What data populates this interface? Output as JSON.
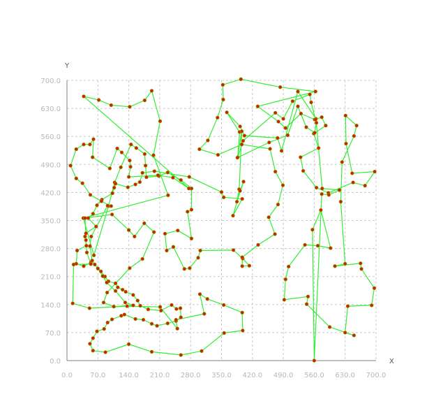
{
  "chart_data": {
    "type": "line",
    "title": "",
    "xlabel": "X",
    "ylabel": "Y",
    "xlim": [
      0,
      700
    ],
    "ylim": [
      0,
      700
    ],
    "grid": true,
    "x_ticks": [
      "0.0",
      "70.0",
      "140.0",
      "210.0",
      "280.0",
      "350.0",
      "420.0",
      "490.0",
      "560.0",
      "630.0",
      "700.0"
    ],
    "y_ticks": [
      "0.0",
      "70.0",
      "140.0",
      "210.0",
      "280.0",
      "350.0",
      "420.0",
      "490.0",
      "560.0",
      "630.0",
      "700.0"
    ],
    "colors": {
      "line": "#33ee33",
      "marker": "#cc2200",
      "marker_edge": "#88aa00",
      "grid": "#c8c8c8",
      "axis": "#808080"
    },
    "series": [
      {
        "closed": true,
        "points": [
          [
            38,
            660
          ],
          [
            72,
            651
          ],
          [
            100,
            638
          ],
          [
            142,
            634
          ],
          [
            176,
            650
          ],
          [
            192,
            674
          ],
          [
            211,
            598
          ],
          [
            196,
            513
          ],
          [
            229,
            413
          ],
          [
            37,
            356
          ],
          [
            61,
            263
          ],
          [
            94,
            386
          ],
          [
            108,
            445
          ],
          [
            122,
            483
          ],
          [
            145,
            540
          ],
          [
            157,
            531
          ],
          [
            176,
            516
          ],
          [
            178,
            487
          ],
          [
            180,
            458
          ],
          [
            208,
            461
          ],
          [
            228,
            470
          ],
          [
            258,
            451
          ],
          [
            282,
            430
          ],
          [
            282,
            377
          ],
          [
            273,
            372
          ],
          [
            282,
            305
          ],
          [
            251,
            325
          ],
          [
            222,
            317
          ],
          [
            226,
            275
          ],
          [
            241,
            284
          ],
          [
            266,
            229
          ],
          [
            278,
            231
          ],
          [
            297,
            257
          ],
          [
            302,
            275
          ],
          [
            377,
            276
          ],
          [
            398,
            255
          ],
          [
            413,
            237
          ],
          [
            397,
            236
          ],
          [
            397,
            258
          ],
          [
            433,
            289
          ],
          [
            471,
            316
          ],
          [
            457,
            358
          ],
          [
            478,
            390
          ],
          [
            489,
            438
          ],
          [
            472,
            472
          ],
          [
            460,
            529
          ],
          [
            396,
            540
          ],
          [
            342,
            514
          ],
          [
            300,
            528
          ],
          [
            319,
            550
          ],
          [
            341,
            607
          ],
          [
            354,
            652
          ],
          [
            353,
            689
          ],
          [
            394,
            703
          ],
          [
            483,
            683
          ],
          [
            563,
            672
          ],
          [
            432,
            635
          ],
          [
            479,
            597
          ],
          [
            495,
            581
          ],
          [
            530,
            617
          ],
          [
            561,
            602
          ],
          [
            577,
            608
          ],
          [
            586,
            587
          ],
          [
            559,
            567
          ],
          [
            570,
            531
          ],
          [
            529,
            508
          ],
          [
            535,
            474
          ],
          [
            565,
            432
          ],
          [
            592,
            419
          ],
          [
            648,
            445
          ],
          [
            675,
            437
          ],
          [
            697,
            472
          ],
          [
            646,
            468
          ],
          [
            632,
            542
          ],
          [
            631,
            612
          ],
          [
            656,
            587
          ],
          [
            650,
            561
          ],
          [
            623,
            496
          ],
          [
            620,
            397
          ],
          [
            630,
            242
          ],
          [
            607,
            236
          ],
          [
            665,
            243
          ],
          [
            667,
            229
          ],
          [
            696,
            181
          ],
          [
            690,
            138
          ],
          [
            636,
            136
          ],
          [
            630,
            70
          ],
          [
            650,
            63
          ],
          [
            595,
            84
          ],
          [
            543,
            141
          ],
          [
            546,
            160
          ],
          [
            492,
            152
          ],
          [
            495,
            203
          ],
          [
            502,
            235
          ],
          [
            539,
            289
          ],
          [
            568,
            287
          ],
          [
            597,
            281
          ],
          [
            575,
            376
          ],
          [
            556,
            327
          ],
          [
            560,
            0
          ],
          [
            577,
            416
          ],
          [
            593,
            414
          ],
          [
            617,
            426
          ],
          [
            578,
            430
          ],
          [
            564,
            604
          ],
          [
            523,
            672
          ],
          [
            486,
            524
          ],
          [
            477,
            556
          ],
          [
            402,
            562
          ],
          [
            392,
            585
          ],
          [
            362,
            620
          ],
          [
            391,
            571
          ],
          [
            387,
            508
          ],
          [
            399,
            549
          ],
          [
            472,
            619
          ],
          [
            490,
            604
          ],
          [
            511,
            648
          ],
          [
            550,
            665
          ],
          [
            553,
            645
          ],
          [
            563,
            602
          ],
          [
            565,
            594
          ],
          [
            561,
            569
          ],
          [
            542,
            583
          ],
          [
            523,
            635
          ],
          [
            500,
            563
          ],
          [
            458,
            545
          ],
          [
            386,
            507
          ],
          [
            396,
            573
          ],
          [
            390,
            428
          ],
          [
            385,
            397
          ],
          [
            400,
            447
          ],
          [
            392,
            424
          ],
          [
            376,
            362
          ],
          [
            397,
            404
          ],
          [
            355,
            408
          ],
          [
            350,
            421
          ],
          [
            277,
            459
          ],
          [
            198,
            473
          ],
          [
            171,
            469
          ],
          [
            165,
            446
          ],
          [
            155,
            440
          ],
          [
            138,
            433
          ],
          [
            110,
            442
          ],
          [
            107,
            432
          ],
          [
            103,
            418
          ],
          [
            79,
            402
          ],
          [
            68,
            388
          ],
          [
            59,
            367
          ],
          [
            48,
            356
          ],
          [
            66,
            335
          ],
          [
            43,
            318
          ],
          [
            41,
            310
          ],
          [
            44,
            287
          ],
          [
            23,
            275
          ],
          [
            21,
            242
          ],
          [
            38,
            236
          ],
          [
            54,
            245
          ],
          [
            63,
            240
          ],
          [
            77,
            223
          ],
          [
            86,
            210
          ],
          [
            94,
            198
          ],
          [
            110,
            193
          ],
          [
            115,
            183
          ],
          [
            126,
            177
          ],
          [
            133,
            172
          ],
          [
            150,
            164
          ],
          [
            160,
            150
          ],
          [
            166,
            137
          ],
          [
            184,
            128
          ],
          [
            213,
            125
          ],
          [
            237,
            139
          ],
          [
            248,
            129
          ],
          [
            257,
            131
          ],
          [
            258,
            108
          ],
          [
            247,
            99
          ],
          [
            228,
            93
          ],
          [
            204,
            87
          ],
          [
            192,
            92
          ],
          [
            173,
            102
          ],
          [
            155,
            104
          ],
          [
            130,
            115
          ],
          [
            123,
            112
          ],
          [
            102,
            103
          ],
          [
            92,
            95
          ],
          [
            84,
            79
          ],
          [
            68,
            73
          ],
          [
            59,
            56
          ],
          [
            52,
            42
          ],
          [
            59,
            25
          ],
          [
            87,
            21
          ],
          [
            140,
            41
          ],
          [
            192,
            22
          ],
          [
            258,
            14
          ],
          [
            305,
            24
          ],
          [
            356,
            69
          ],
          [
            398,
            75
          ],
          [
            397,
            120
          ],
          [
            355,
            139
          ],
          [
            318,
            154
          ],
          [
            301,
            166
          ],
          [
            311,
            117
          ],
          [
            247,
            102
          ],
          [
            250,
            80
          ],
          [
            211,
            134
          ],
          [
            136,
            136
          ],
          [
            51,
            131
          ],
          [
            13,
            143
          ],
          [
            15,
            240
          ],
          [
            54,
            241
          ],
          [
            45,
            270
          ],
          [
            43,
            301
          ],
          [
            41,
            356
          ],
          [
            102,
            365
          ],
          [
            140,
            326
          ],
          [
            153,
            310
          ],
          [
            175,
            343
          ],
          [
            197,
            321
          ],
          [
            171,
            254
          ],
          [
            142,
            231
          ],
          [
            91,
            170
          ],
          [
            83,
            145
          ],
          [
            106,
            135
          ],
          [
            150,
            138
          ],
          [
            132,
            145
          ],
          [
            110,
            174
          ],
          [
            90,
            195
          ],
          [
            81,
            211
          ],
          [
            70,
            230
          ],
          [
            57,
            250
          ],
          [
            52,
            286
          ],
          [
            55,
            310
          ],
          [
            92,
            387
          ],
          [
            100,
            386
          ],
          [
            78,
            398
          ],
          [
            53,
            414
          ],
          [
            35,
            443
          ],
          [
            21,
            455
          ],
          [
            8,
            487
          ],
          [
            21,
            528
          ],
          [
            38,
            540
          ],
          [
            52,
            540
          ],
          [
            60,
            553
          ],
          [
            58,
            508
          ],
          [
            97,
            480
          ],
          [
            114,
            530
          ],
          [
            124,
            520
          ],
          [
            142,
            500
          ],
          [
            144,
            484
          ],
          [
            140,
            459
          ],
          [
            206,
            463
          ],
          [
            240,
            457
          ],
          [
            276,
            430
          ]
        ]
      }
    ]
  }
}
